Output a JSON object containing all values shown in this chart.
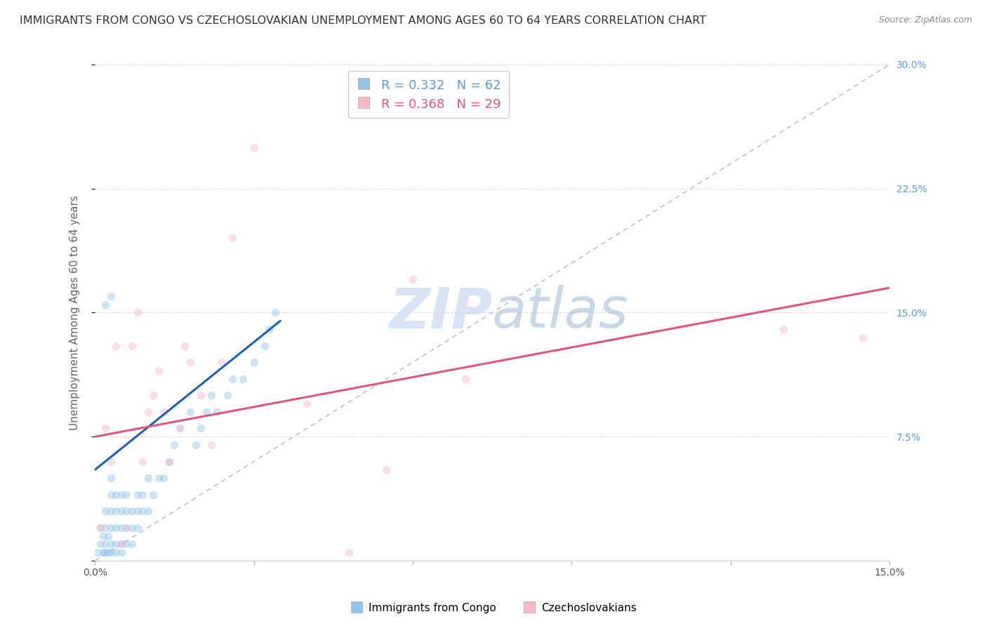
{
  "title": "IMMIGRANTS FROM CONGO VS CZECHOSLOVAKIAN UNEMPLOYMENT AMONG AGES 60 TO 64 YEARS CORRELATION CHART",
  "source": "Source: ZipAtlas.com",
  "ylabel": "Unemployment Among Ages 60 to 64 years",
  "xlim": [
    0.0,
    0.15
  ],
  "ylim": [
    0.0,
    0.3
  ],
  "xticks": [
    0.0,
    0.03,
    0.06,
    0.09,
    0.12,
    0.15
  ],
  "yticks_right": [
    0.0,
    0.075,
    0.15,
    0.225,
    0.3
  ],
  "yticklabels_right": [
    "",
    "7.5%",
    "15.0%",
    "22.5%",
    "30.0%"
  ],
  "watermark_part1": "ZIP",
  "watermark_part2": "atlas",
  "blue_scatter_x": [
    0.0005,
    0.001,
    0.001,
    0.0015,
    0.0015,
    0.002,
    0.002,
    0.002,
    0.002,
    0.0025,
    0.0025,
    0.003,
    0.003,
    0.003,
    0.003,
    0.003,
    0.003,
    0.004,
    0.004,
    0.004,
    0.004,
    0.004,
    0.005,
    0.005,
    0.005,
    0.005,
    0.005,
    0.006,
    0.006,
    0.006,
    0.006,
    0.007,
    0.007,
    0.007,
    0.008,
    0.008,
    0.008,
    0.009,
    0.009,
    0.01,
    0.01,
    0.011,
    0.012,
    0.013,
    0.014,
    0.015,
    0.016,
    0.018,
    0.019,
    0.02,
    0.021,
    0.022,
    0.023,
    0.025,
    0.026,
    0.028,
    0.03,
    0.032,
    0.033,
    0.034,
    0.002,
    0.003
  ],
  "blue_scatter_y": [
    0.005,
    0.01,
    0.02,
    0.005,
    0.015,
    0.005,
    0.01,
    0.02,
    0.03,
    0.005,
    0.015,
    0.005,
    0.01,
    0.02,
    0.03,
    0.04,
    0.05,
    0.005,
    0.01,
    0.02,
    0.03,
    0.04,
    0.005,
    0.01,
    0.02,
    0.03,
    0.04,
    0.01,
    0.02,
    0.03,
    0.04,
    0.01,
    0.02,
    0.03,
    0.02,
    0.03,
    0.04,
    0.03,
    0.04,
    0.03,
    0.05,
    0.04,
    0.05,
    0.05,
    0.06,
    0.07,
    0.08,
    0.09,
    0.07,
    0.08,
    0.09,
    0.1,
    0.09,
    0.1,
    0.11,
    0.11,
    0.12,
    0.13,
    0.14,
    0.15,
    0.155,
    0.16
  ],
  "pink_scatter_x": [
    0.001,
    0.002,
    0.003,
    0.004,
    0.005,
    0.006,
    0.007,
    0.008,
    0.009,
    0.01,
    0.011,
    0.012,
    0.013,
    0.014,
    0.016,
    0.017,
    0.018,
    0.02,
    0.022,
    0.024,
    0.026,
    0.03,
    0.04,
    0.048,
    0.055,
    0.06,
    0.07,
    0.13,
    0.145
  ],
  "pink_scatter_y": [
    0.02,
    0.08,
    0.06,
    0.13,
    0.01,
    0.02,
    0.13,
    0.15,
    0.06,
    0.09,
    0.1,
    0.115,
    0.09,
    0.06,
    0.08,
    0.13,
    0.12,
    0.1,
    0.07,
    0.12,
    0.195,
    0.25,
    0.095,
    0.005,
    0.055,
    0.17,
    0.11,
    0.14,
    0.135
  ],
  "blue_line_x": [
    0.0,
    0.035
  ],
  "blue_line_y": [
    0.055,
    0.145
  ],
  "pink_line_x": [
    0.0,
    0.15
  ],
  "pink_line_y": [
    0.075,
    0.165
  ],
  "dashed_line_x": [
    0.0,
    0.15
  ],
  "dashed_line_y": [
    0.0,
    0.3
  ],
  "blue_scatter_color": "#92c5e8",
  "pink_scatter_color": "#f9b8c8",
  "blue_line_color": "#2060b0",
  "pink_line_color": "#e05580",
  "dashed_line_color": "#b0b8c8",
  "background_color": "#ffffff",
  "grid_color": "#d8dce8",
  "title_fontsize": 11.5,
  "axis_label_fontsize": 11,
  "tick_fontsize": 10,
  "scatter_size": 55,
  "scatter_alpha": 0.45
}
